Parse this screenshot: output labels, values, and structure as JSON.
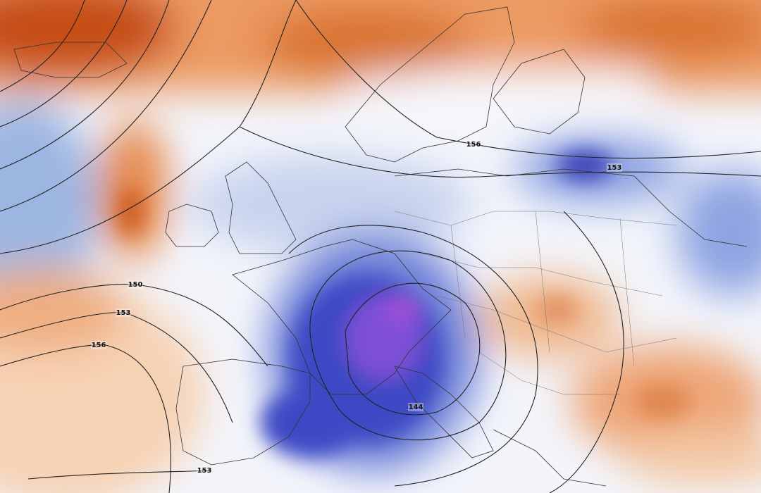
{
  "contour_labels": [
    156,
    153,
    150,
    153,
    156,
    144,
    153
  ]
}
